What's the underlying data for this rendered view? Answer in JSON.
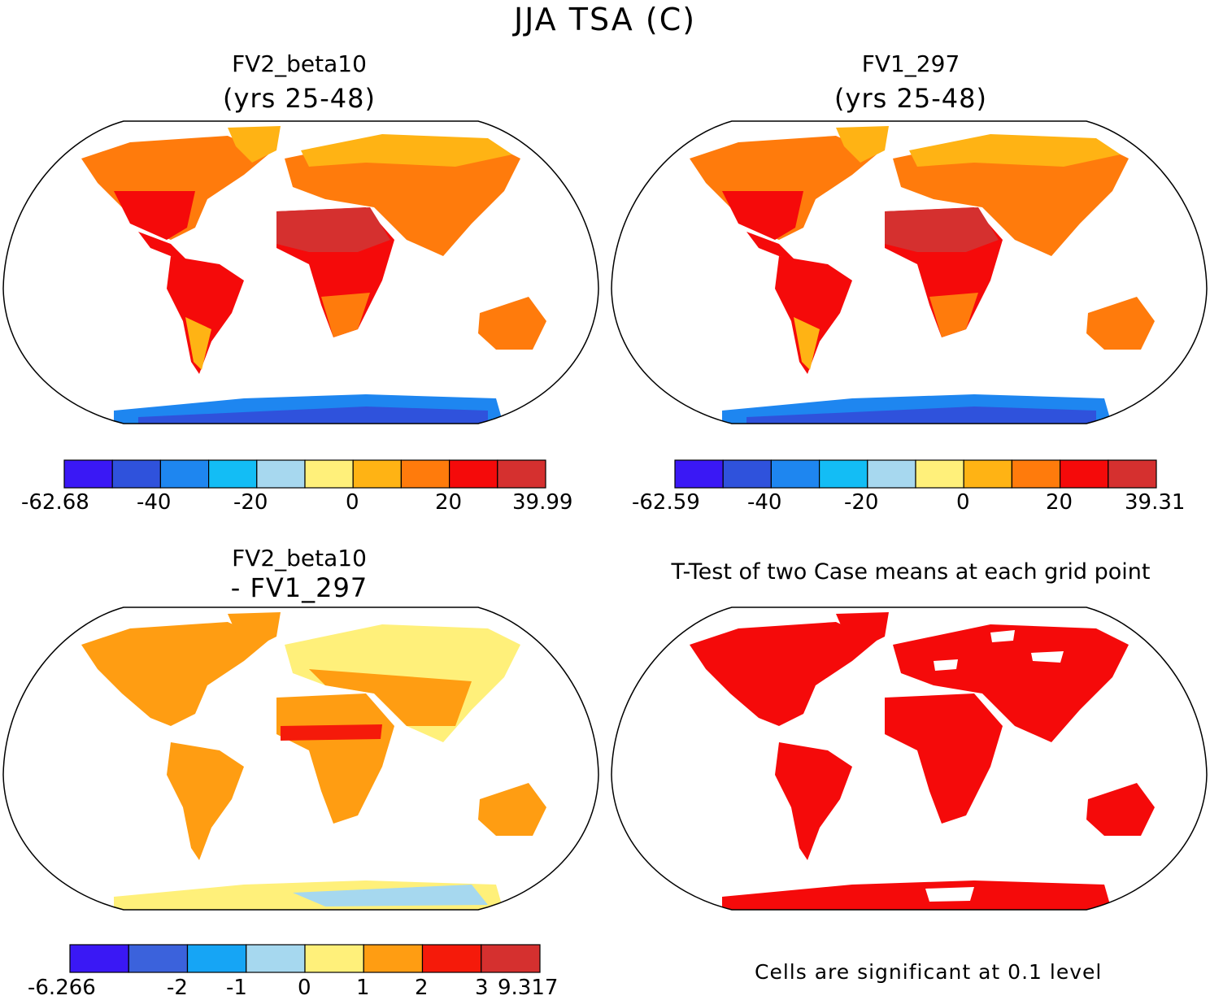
{
  "title": "JJA TSA (C)",
  "panels": [
    {
      "id": "fv2",
      "title": "FV2_beta10",
      "subtitle": "(yrs 25-48)",
      "colorbar": {
        "colors": [
          "#3a18f5",
          "#2f52dc",
          "#1e86f0",
          "#13bdf5",
          "#a7d8ef",
          "#fff07a",
          "#ffb314",
          "#ff7b0c",
          "#f50a0a",
          "#d5302f"
        ],
        "labels": [
          "-62.68",
          "-40",
          "-20",
          "0",
          "20",
          "39.99"
        ]
      }
    },
    {
      "id": "fv1",
      "title": "FV1_297",
      "subtitle": "(yrs 25-48)",
      "colorbar": {
        "colors": [
          "#3a18f5",
          "#2f52dc",
          "#1e86f0",
          "#13bdf5",
          "#a7d8ef",
          "#fff07a",
          "#ffb314",
          "#ff7b0c",
          "#f50a0a",
          "#d5302f"
        ],
        "labels": [
          "-62.59",
          "-40",
          "-20",
          "0",
          "20",
          "39.31"
        ]
      }
    },
    {
      "id": "diff",
      "title": "FV2_beta10",
      "subtitle": "- FV1_297",
      "colorbar": {
        "colors": [
          "#3a18f5",
          "#3b62dc",
          "#16a5f5",
          "#a6d8ef",
          "#fff07a",
          "#ff9d12",
          "#f51a0a",
          "#d5302f"
        ],
        "labels": [
          "-6.266",
          "-2",
          "-1",
          "0",
          "1",
          "2",
          "3",
          "9.317"
        ]
      }
    },
    {
      "id": "ttest",
      "title": "T-Test of two Case means at each grid point",
      "footnote": "Cells are significant at 0.1 level"
    }
  ]
}
